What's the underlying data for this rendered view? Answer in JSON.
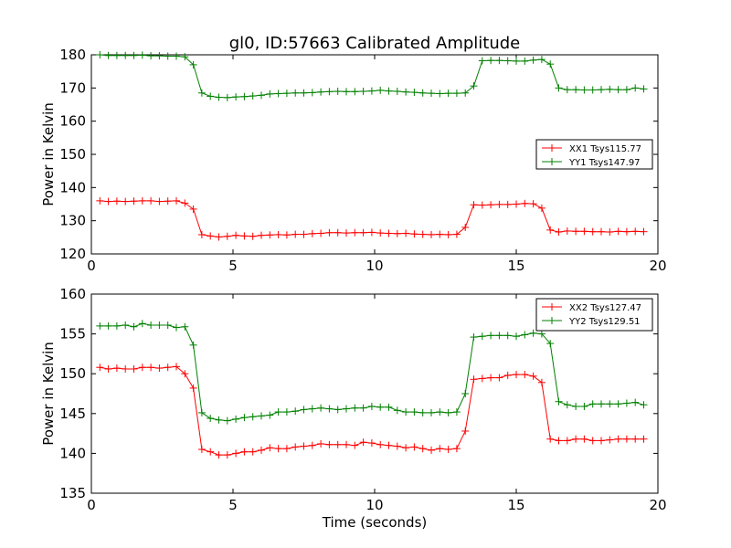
{
  "figure": {
    "title": "gl0, ID:57663 Calibrated Amplitude"
  },
  "chart_data": [
    {
      "type": "line",
      "title": "gl0, ID:57663 Calibrated Amplitude",
      "xlabel": "",
      "ylabel": "Power in Kelvin",
      "xlim": [
        0,
        20
      ],
      "ylim": [
        120,
        180
      ],
      "xticks": [
        "0",
        "5",
        "10",
        "15",
        "20"
      ],
      "yticks": [
        "120",
        "130",
        "140",
        "150",
        "160",
        "170",
        "180"
      ],
      "grid": false,
      "legend_position": "center-right",
      "x": [
        0.3,
        0.6,
        0.9,
        1.2,
        1.5,
        1.8,
        2.1,
        2.4,
        2.7,
        3.0,
        3.3,
        3.6,
        3.9,
        4.2,
        4.5,
        4.8,
        5.1,
        5.4,
        5.7,
        6.0,
        6.3,
        6.6,
        6.9,
        7.2,
        7.5,
        7.8,
        8.1,
        8.4,
        8.7,
        9.0,
        9.3,
        9.6,
        9.9,
        10.2,
        10.5,
        10.8,
        11.1,
        11.4,
        11.7,
        12.0,
        12.3,
        12.6,
        12.9,
        13.2,
        13.5,
        13.8,
        14.1,
        14.4,
        14.7,
        15.0,
        15.3,
        15.6,
        15.9,
        16.2,
        16.5,
        16.8,
        17.1,
        17.4,
        17.7,
        18.0,
        18.3,
        18.6,
        18.9,
        19.2,
        19.5
      ],
      "series": [
        {
          "name": "XX1 Tsys115.77",
          "color": "#ff0000",
          "values": [
            136.0,
            135.8,
            135.9,
            135.8,
            135.9,
            136.0,
            136.0,
            135.8,
            135.9,
            136.0,
            135.3,
            133.5,
            125.8,
            125.4,
            125.1,
            125.3,
            125.6,
            125.4,
            125.3,
            125.6,
            125.7,
            125.8,
            125.7,
            125.9,
            125.9,
            126.1,
            126.2,
            126.4,
            126.4,
            126.3,
            126.4,
            126.4,
            126.5,
            126.3,
            126.2,
            126.1,
            126.2,
            126.0,
            125.9,
            125.8,
            125.9,
            125.8,
            125.9,
            128.0,
            134.8,
            134.7,
            134.8,
            134.9,
            134.9,
            135.0,
            135.2,
            135.1,
            133.8,
            127.2,
            126.6,
            126.9,
            126.8,
            126.8,
            126.7,
            126.7,
            126.6,
            126.8,
            126.7,
            126.8,
            126.7
          ],
          "value_note": "one value per x"
        },
        {
          "name": "YY1 Tsys147.97",
          "color": "#008000",
          "values": [
            180.0,
            179.8,
            179.8,
            179.8,
            179.8,
            179.9,
            179.7,
            179.7,
            179.6,
            179.6,
            179.4,
            177.0,
            168.5,
            167.5,
            167.2,
            167.1,
            167.3,
            167.4,
            167.6,
            167.8,
            168.2,
            168.3,
            168.4,
            168.5,
            168.5,
            168.6,
            168.8,
            168.9,
            169.0,
            168.9,
            168.9,
            169.0,
            169.1,
            169.3,
            169.1,
            169.0,
            168.8,
            168.7,
            168.5,
            168.4,
            168.3,
            168.4,
            168.4,
            168.5,
            170.6,
            178.2,
            178.3,
            178.3,
            178.2,
            178.1,
            178.1,
            178.4,
            178.6,
            177.2,
            170.0,
            169.5,
            169.5,
            169.4,
            169.4,
            169.5,
            169.6,
            169.5,
            169.5,
            170.0,
            169.7
          ]
        }
      ]
    },
    {
      "type": "line",
      "title": "",
      "xlabel": "Time (seconds)",
      "ylabel": "Power in Kelvin",
      "xlim": [
        0,
        20
      ],
      "ylim": [
        135,
        160
      ],
      "xticks": [
        "0",
        "5",
        "10",
        "15",
        "20"
      ],
      "yticks": [
        "135",
        "140",
        "145",
        "150",
        "155",
        "160"
      ],
      "grid": false,
      "legend_position": "top-right",
      "x": [
        0.3,
        0.6,
        0.9,
        1.2,
        1.5,
        1.8,
        2.1,
        2.4,
        2.7,
        3.0,
        3.3,
        3.6,
        3.9,
        4.2,
        4.5,
        4.8,
        5.1,
        5.4,
        5.7,
        6.0,
        6.3,
        6.6,
        6.9,
        7.2,
        7.5,
        7.8,
        8.1,
        8.4,
        8.7,
        9.0,
        9.3,
        9.6,
        9.9,
        10.2,
        10.5,
        10.8,
        11.1,
        11.4,
        11.7,
        12.0,
        12.3,
        12.6,
        12.9,
        13.2,
        13.5,
        13.8,
        14.1,
        14.4,
        14.7,
        15.0,
        15.3,
        15.6,
        15.9,
        16.2,
        16.5,
        16.8,
        17.1,
        17.4,
        17.7,
        18.0,
        18.3,
        18.6,
        18.9,
        19.2,
        19.5
      ],
      "series": [
        {
          "name": "XX2 Tsys127.47",
          "color": "#ff0000",
          "values": [
            150.8,
            150.6,
            150.7,
            150.6,
            150.6,
            150.8,
            150.8,
            150.7,
            150.8,
            150.9,
            150.0,
            148.2,
            140.5,
            140.2,
            139.8,
            139.8,
            140.0,
            140.2,
            140.2,
            140.4,
            140.7,
            140.6,
            140.6,
            140.8,
            140.9,
            141.0,
            141.2,
            141.1,
            141.1,
            141.1,
            141.0,
            141.4,
            141.3,
            141.1,
            141.0,
            140.9,
            140.7,
            140.8,
            140.6,
            140.4,
            140.6,
            140.5,
            140.6,
            142.8,
            149.3,
            149.4,
            149.5,
            149.5,
            149.8,
            149.9,
            149.9,
            149.7,
            148.9,
            141.8,
            141.6,
            141.6,
            141.8,
            141.8,
            141.6,
            141.6,
            141.7,
            141.8,
            141.8,
            141.8,
            141.8
          ]
        },
        {
          "name": "YY2 Tsys129.51",
          "color": "#008000",
          "values": [
            156.0,
            156.0,
            156.0,
            156.1,
            155.9,
            156.3,
            156.1,
            156.1,
            156.1,
            155.8,
            155.9,
            153.6,
            145.1,
            144.4,
            144.2,
            144.1,
            144.3,
            144.5,
            144.6,
            144.7,
            144.8,
            145.2,
            145.2,
            145.3,
            145.5,
            145.6,
            145.7,
            145.6,
            145.5,
            145.6,
            145.7,
            145.7,
            145.9,
            145.8,
            145.8,
            145.4,
            145.2,
            145.2,
            145.1,
            145.1,
            145.2,
            145.1,
            145.2,
            147.5,
            154.6,
            154.7,
            154.8,
            154.8,
            154.8,
            154.7,
            154.9,
            155.1,
            155.0,
            153.8,
            146.5,
            146.1,
            145.9,
            145.9,
            146.2,
            146.2,
            146.2,
            146.2,
            146.3,
            146.4,
            146.1
          ]
        }
      ]
    }
  ]
}
